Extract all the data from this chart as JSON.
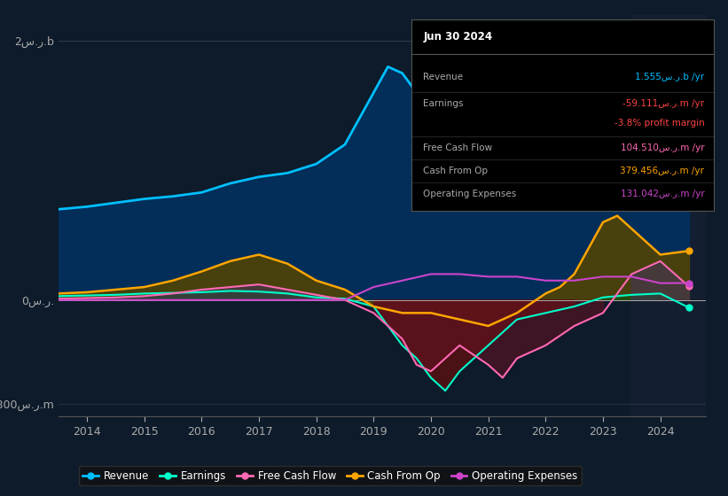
{
  "background_color": "#0d1b2a",
  "plot_bg_color": "#0d1b2a",
  "title": "Jun 30 2024",
  "yticks_top": {
    "label": "2س.ر.b",
    "value": 2000
  },
  "yticks_zero": {
    "label": "0س.ر.",
    "value": 0
  },
  "yticks_bot": {
    "label": "-800س.ر.m",
    "value": -800
  },
  "ylim": [
    -900,
    2200
  ],
  "xlim_start": 2013.5,
  "xlim_end": 2024.8,
  "xtick_years": [
    2014,
    2015,
    2016,
    2017,
    2018,
    2019,
    2020,
    2021,
    2022,
    2023,
    2024
  ],
  "revenue": {
    "x": [
      2013.5,
      2014,
      2014.5,
      2015,
      2015.5,
      2016,
      2016.5,
      2017,
      2017.5,
      2018,
      2018.5,
      2019,
      2019.25,
      2019.5,
      2019.75,
      2020,
      2020.5,
      2021,
      2021.5,
      2022,
      2022.5,
      2023,
      2023.5,
      2024,
      2024.5
    ],
    "y": [
      700,
      720,
      750,
      780,
      800,
      830,
      900,
      950,
      980,
      1050,
      1200,
      1600,
      1800,
      1750,
      1600,
      1400,
      1300,
      1050,
      900,
      850,
      950,
      1100,
      1300,
      1500,
      1555
    ],
    "color": "#00bfff",
    "lw": 2.0
  },
  "earnings": {
    "x": [
      2013.5,
      2014,
      2014.5,
      2015,
      2015.5,
      2016,
      2016.5,
      2017,
      2017.5,
      2018,
      2018.5,
      2019,
      2019.25,
      2019.5,
      2019.75,
      2020,
      2020.25,
      2020.5,
      2021,
      2021.25,
      2021.5,
      2022,
      2022.5,
      2023,
      2023.5,
      2024,
      2024.5
    ],
    "y": [
      30,
      35,
      40,
      50,
      55,
      60,
      70,
      65,
      50,
      20,
      10,
      -50,
      -200,
      -350,
      -450,
      -600,
      -700,
      -550,
      -350,
      -250,
      -150,
      -100,
      -50,
      20,
      40,
      50,
      -59
    ],
    "color": "#00ffcc",
    "lw": 1.5
  },
  "free_cash_flow": {
    "x": [
      2013.5,
      2014,
      2014.5,
      2015,
      2015.5,
      2016,
      2016.5,
      2017,
      2017.5,
      2018,
      2018.5,
      2019,
      2019.5,
      2019.75,
      2020,
      2020.25,
      2020.5,
      2021,
      2021.25,
      2021.5,
      2022,
      2022.5,
      2023,
      2023.5,
      2024,
      2024.5
    ],
    "y": [
      10,
      15,
      20,
      30,
      50,
      80,
      100,
      120,
      80,
      40,
      0,
      -100,
      -300,
      -500,
      -550,
      -450,
      -350,
      -500,
      -600,
      -450,
      -350,
      -200,
      -100,
      200,
      300,
      104
    ],
    "color": "#ff69b4",
    "lw": 1.5
  },
  "cash_from_op": {
    "x": [
      2013.5,
      2014,
      2014.5,
      2015,
      2015.5,
      2016,
      2016.5,
      2017,
      2017.5,
      2018,
      2018.5,
      2019,
      2019.5,
      2020,
      2020.5,
      2021,
      2021.5,
      2022,
      2022.25,
      2022.5,
      2023,
      2023.25,
      2023.5,
      2024,
      2024.5
    ],
    "y": [
      50,
      60,
      80,
      100,
      150,
      220,
      300,
      350,
      280,
      150,
      80,
      -50,
      -100,
      -100,
      -150,
      -200,
      -100,
      50,
      100,
      200,
      600,
      650,
      550,
      350,
      379
    ],
    "color": "#ffa500",
    "lw": 1.8
  },
  "operating_expenses": {
    "x": [
      2013.5,
      2014,
      2014.5,
      2015,
      2015.5,
      2016,
      2016.5,
      2017,
      2017.5,
      2018,
      2018.5,
      2019,
      2019.5,
      2020,
      2020.5,
      2021,
      2021.5,
      2022,
      2022.5,
      2023,
      2023.5,
      2024,
      2024.5
    ],
    "y": [
      0,
      0,
      0,
      0,
      0,
      0,
      0,
      0,
      0,
      0,
      0,
      100,
      150,
      200,
      200,
      180,
      180,
      150,
      150,
      180,
      180,
      130,
      131
    ],
    "color": "#cc44cc",
    "lw": 1.5
  },
  "legend": [
    {
      "label": "Revenue",
      "color": "#00bfff"
    },
    {
      "label": "Earnings",
      "color": "#00ffcc"
    },
    {
      "label": "Free Cash Flow",
      "color": "#ff69b4"
    },
    {
      "label": "Cash From Op",
      "color": "#ffa500"
    },
    {
      "label": "Operating Expenses",
      "color": "#cc44cc"
    }
  ],
  "shade_right_x": 2023.5,
  "info_rows": [
    {
      "label": "Revenue",
      "value": "1.555س.ر.b /yr",
      "color": "#00bfff"
    },
    {
      "label": "Earnings",
      "value": "-59.111س.ر.m /yr",
      "color": "#ff4444"
    },
    {
      "label": "",
      "value": "-3.8% profit margin",
      "color": "#ff4444"
    },
    {
      "label": "Free Cash Flow",
      "value": "104.510س.ر.m /yr",
      "color": "#ff69b4"
    },
    {
      "label": "Cash From Op",
      "value": "379.456س.ر.m /yr",
      "color": "#ffa500"
    },
    {
      "label": "Operating Expenses",
      "value": "131.042س.ر.m /yr",
      "color": "#cc44cc"
    }
  ]
}
